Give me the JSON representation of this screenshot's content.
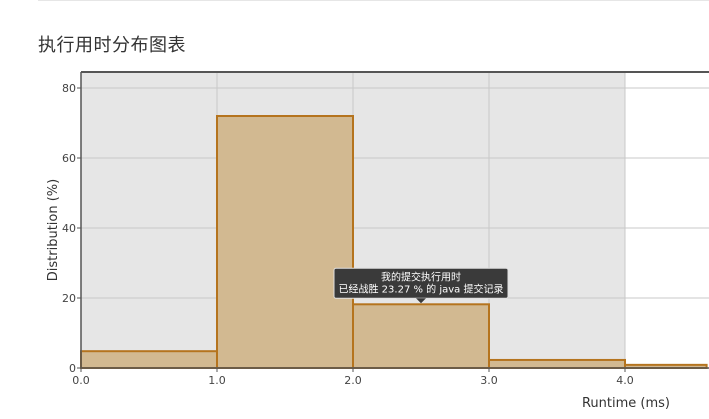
{
  "page": {
    "title": "执行用时分布图表"
  },
  "chart_data": {
    "type": "bar",
    "title": "",
    "xlabel": "Runtime (ms)",
    "ylabel": "Distribution (%)",
    "xlim": [
      0,
      4.6
    ],
    "ylim": [
      0,
      80
    ],
    "x_ticks": [
      "0.0",
      "1.0",
      "2.0",
      "3.0",
      "4.0"
    ],
    "y_ticks": [
      "0",
      "20",
      "40",
      "60",
      "80"
    ],
    "bins": [
      {
        "x0": 0.0,
        "x1": 1.0,
        "value": 4.8
      },
      {
        "x0": 1.0,
        "x1": 2.0,
        "value": 72.0
      },
      {
        "x0": 2.0,
        "x1": 3.0,
        "value": 18.2
      },
      {
        "x0": 3.0,
        "x1": 4.0,
        "value": 2.3
      },
      {
        "x0": 4.0,
        "x1": 4.6,
        "value": 0.9
      }
    ],
    "shaded_range": [
      0,
      4.0
    ],
    "highlighted_bin": 2,
    "grid": true,
    "colors": {
      "bar_fill": "#d2b991",
      "bar_stroke": "#b5741e",
      "shade": "#e6e6e6",
      "grid": "#c8c8c8",
      "tooltip_bg": "#3a3a3a"
    },
    "tooltip": {
      "line1": "我的提交执行用时",
      "line2": "已经战胜 23.27 % 的 java 提交记录"
    }
  }
}
